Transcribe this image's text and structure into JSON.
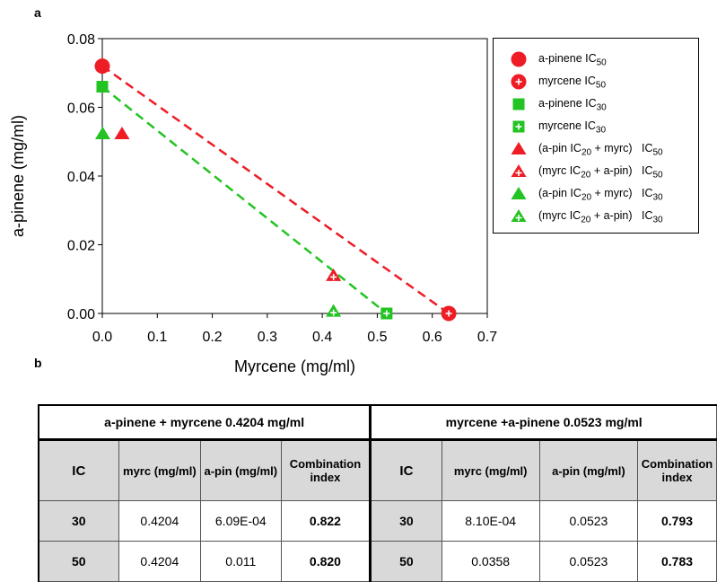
{
  "panels": {
    "a": "a",
    "b": "b"
  },
  "chart_data": {
    "type": "scatter",
    "title": "",
    "xlabel": "Myrcene (mg/ml)",
    "ylabel": "a-pinene (mg/ml)",
    "xlim": [
      0,
      0.7
    ],
    "ylim": [
      0,
      0.08
    ],
    "xticks": [
      0.0,
      0.1,
      0.2,
      0.3,
      0.4,
      0.5,
      0.6,
      0.7
    ],
    "yticks": [
      0.0,
      0.02,
      0.04,
      0.06,
      0.08
    ],
    "xtick_labels": [
      "0.0",
      "0.1",
      "0.2",
      "0.3",
      "0.4",
      "0.5",
      "0.6",
      "0.7"
    ],
    "ytick_labels": [
      "0.00",
      "0.02",
      "0.04",
      "0.06",
      "0.08"
    ],
    "grid": false,
    "legend_position": "right",
    "colors": {
      "red": "#ee1c25",
      "green": "#22c322"
    },
    "series": [
      {
        "name": "a-pinene IC50",
        "marker": "circle",
        "color": "#ee1c25",
        "filled": true,
        "x": [
          0.0
        ],
        "y": [
          0.072
        ]
      },
      {
        "name": "myrcene IC50",
        "marker": "circle-plus",
        "color": "#ee1c25",
        "filled": true,
        "x": [
          0.63
        ],
        "y": [
          0.0
        ]
      },
      {
        "name": "a-pinene IC30",
        "marker": "square",
        "color": "#22c322",
        "filled": true,
        "x": [
          0.0
        ],
        "y": [
          0.066
        ]
      },
      {
        "name": "myrcene IC30",
        "marker": "square-plus",
        "color": "#22c322",
        "filled": true,
        "x": [
          0.517
        ],
        "y": [
          0.0
        ]
      },
      {
        "name": "(a-pin IC20 + myrc) IC50",
        "marker": "triangle",
        "color": "#ee1c25",
        "filled": true,
        "x": [
          0.0358
        ],
        "y": [
          0.0523
        ]
      },
      {
        "name": "(myrc IC20 + a-pin) IC50",
        "marker": "triangle-plus",
        "color": "#ee1c25",
        "filled": true,
        "x": [
          0.4204
        ],
        "y": [
          0.011
        ]
      },
      {
        "name": "(a-pin IC20 + myrc) IC30",
        "marker": "triangle",
        "color": "#22c322",
        "filled": true,
        "x": [
          0.00081
        ],
        "y": [
          0.0523
        ]
      },
      {
        "name": "(myrc IC20 + a-pin) IC30",
        "marker": "triangle-plus",
        "color": "#22c322",
        "filled": true,
        "x": [
          0.4204
        ],
        "y": [
          0.000609
        ]
      }
    ],
    "lines": [
      {
        "color": "#ee1c25",
        "style": "dashed",
        "x": [
          0.0,
          0.63
        ],
        "y": [
          0.072,
          0.0
        ]
      },
      {
        "color": "#22c322",
        "style": "dashed",
        "x": [
          0.0,
          0.517
        ],
        "y": [
          0.066,
          0.0
        ]
      }
    ]
  },
  "legend": [
    {
      "marker": "circle",
      "color": "#ee1c25",
      "pre": "a-pinene IC",
      "sub": "50",
      "post": ""
    },
    {
      "marker": "circle-plus",
      "color": "#ee1c25",
      "pre": "myrcene IC",
      "sub": "50",
      "post": ""
    },
    {
      "marker": "square",
      "color": "#22c322",
      "pre": "a-pinene IC",
      "sub": "30",
      "post": ""
    },
    {
      "marker": "square-plus",
      "color": "#22c322",
      "pre": "myrcene IC",
      "sub": "30",
      "post": ""
    },
    {
      "marker": "triangle",
      "color": "#ee1c25",
      "pre": "(a-pin IC",
      "sub": "20",
      "post": " + myrc)   IC",
      "sub2": "50"
    },
    {
      "marker": "triangle-plus",
      "color": "#ee1c25",
      "pre": "(myrc IC",
      "sub": "20",
      "post": " + a-pin)   IC",
      "sub2": "50"
    },
    {
      "marker": "triangle",
      "color": "#22c322",
      "pre": "(a-pin IC",
      "sub": "20",
      "post": " + myrc)   IC",
      "sub2": "30"
    },
    {
      "marker": "triangle-plus",
      "color": "#22c322",
      "pre": "(myrc IC",
      "sub": "20",
      "post": " + a-pin)   IC",
      "sub2": "30"
    }
  ],
  "table": {
    "group_left": "a-pinene + myrcene 0.4204 mg/ml",
    "group_right": "myrcene +a-pinene 0.0523 mg/ml",
    "headers": [
      "IC",
      "myrc (mg/ml)",
      "a-pin (mg/ml)",
      "Combination index",
      "IC",
      "myrc (mg/ml)",
      "a-pin (mg/ml)",
      "Combination index"
    ],
    "rows": [
      [
        "30",
        "0.4204",
        "6.09E-04",
        "0.822",
        "30",
        "8.10E-04",
        "0.0523",
        "0.793"
      ],
      [
        "50",
        "0.4204",
        "0.011",
        "0.820",
        "50",
        "0.0358",
        "0.0523",
        "0.783"
      ]
    ]
  }
}
